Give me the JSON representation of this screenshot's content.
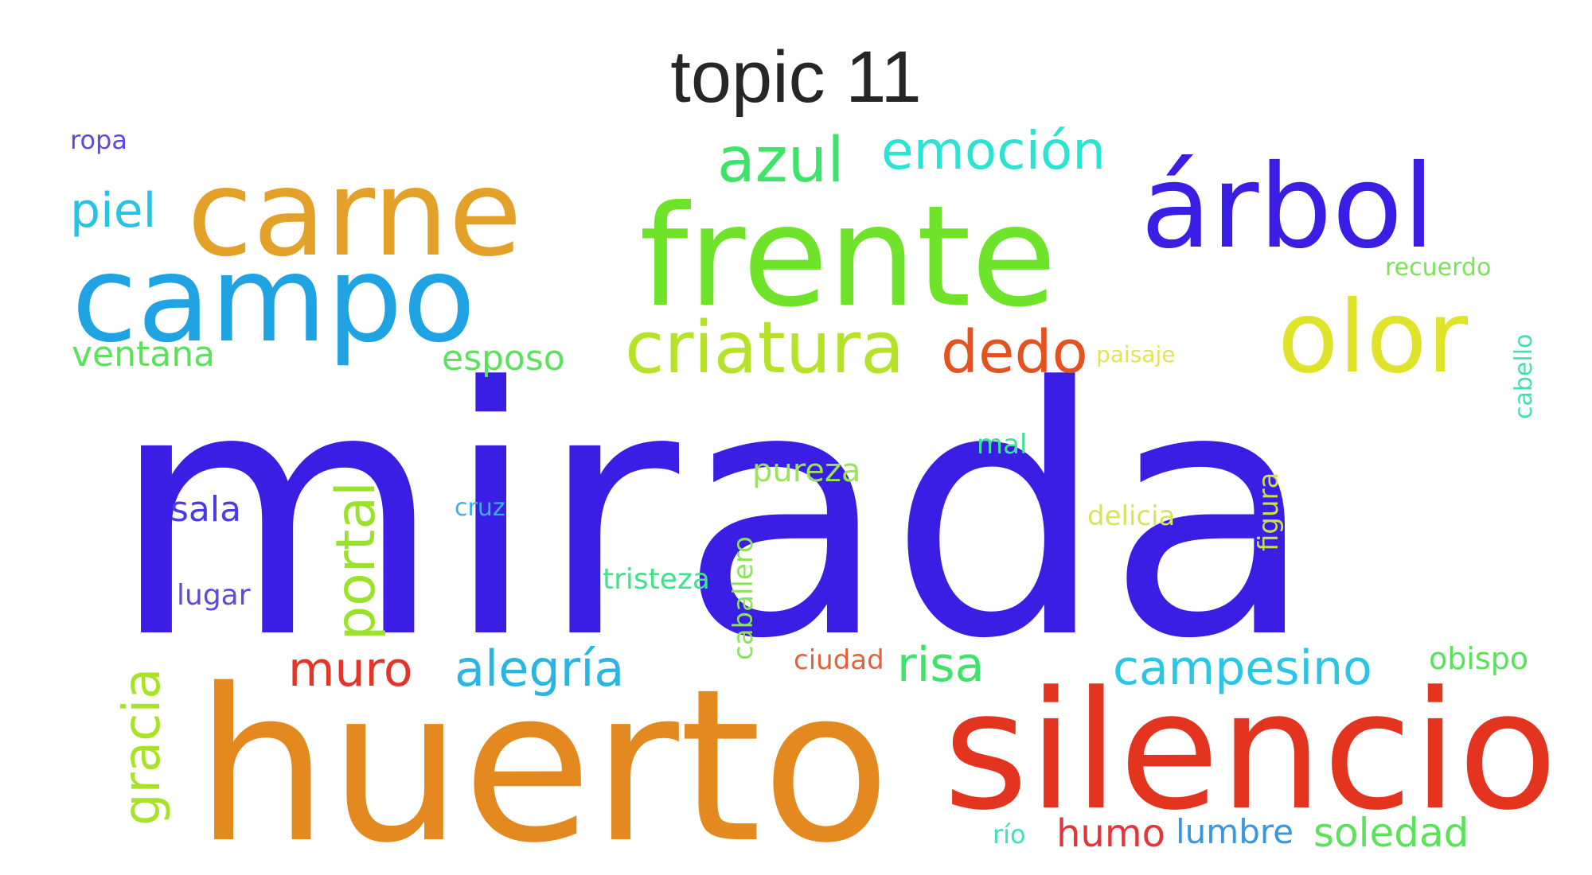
{
  "title": "topic 11",
  "words": [
    {
      "text": "mirada",
      "color": "#3a1ee3"
    },
    {
      "text": "huerto",
      "color": "#e3891f"
    },
    {
      "text": "silencio",
      "color": "#e3341f"
    },
    {
      "text": "frente",
      "color": "#6ee32a"
    },
    {
      "text": "carne",
      "color": "#e3a12a"
    },
    {
      "text": "campo",
      "color": "#1fa3e3"
    },
    {
      "text": "árbol",
      "color": "#3a1ee3"
    },
    {
      "text": "olor",
      "color": "#dfe32a"
    },
    {
      "text": "criatura",
      "color": "#b6e32a"
    },
    {
      "text": "azul",
      "color": "#3ee36a"
    },
    {
      "text": "emoción",
      "color": "#2ae3d2"
    },
    {
      "text": "piel",
      "color": "#2ac2e3"
    },
    {
      "text": "dedo",
      "color": "#e3521f"
    },
    {
      "text": "ventana",
      "color": "#5ae35a"
    },
    {
      "text": "esposo",
      "color": "#5ae35a"
    },
    {
      "text": "portal",
      "color": "#9be32a"
    },
    {
      "text": "gracia",
      "color": "#a8e32a"
    },
    {
      "text": "muro",
      "color": "#e3362a"
    },
    {
      "text": "alegría",
      "color": "#2ab6e3"
    },
    {
      "text": "campesino",
      "color": "#2ac6e3"
    },
    {
      "text": "risa",
      "color": "#3ee36a"
    },
    {
      "text": "sala",
      "color": "#4a3ae3"
    },
    {
      "text": "lugar",
      "color": "#5a4ae3"
    },
    {
      "text": "cruz",
      "color": "#3ab0e3"
    },
    {
      "text": "tristeza",
      "color": "#3ee38a"
    },
    {
      "text": "caballero",
      "color": "#8ae35a"
    },
    {
      "text": "pureza",
      "color": "#9ae35a"
    },
    {
      "text": "mal",
      "color": "#3ee39a"
    },
    {
      "text": "delicia",
      "color": "#d8e35a"
    },
    {
      "text": "figura",
      "color": "#c8e34a"
    },
    {
      "text": "recuerdo",
      "color": "#7ae35a"
    },
    {
      "text": "paisaje",
      "color": "#e3e35a"
    },
    {
      "text": "cabello",
      "color": "#3ee3aa"
    },
    {
      "text": "obispo",
      "color": "#5ae35a"
    },
    {
      "text": "ciudad",
      "color": "#e3623a"
    },
    {
      "text": "humo",
      "color": "#e3363a"
    },
    {
      "text": "lumbre",
      "color": "#3a96e3"
    },
    {
      "text": "soledad",
      "color": "#5ae35a"
    },
    {
      "text": "río",
      "color": "#3ee3ba"
    },
    {
      "text": "ropa",
      "color": "#5a4ae3"
    }
  ]
}
